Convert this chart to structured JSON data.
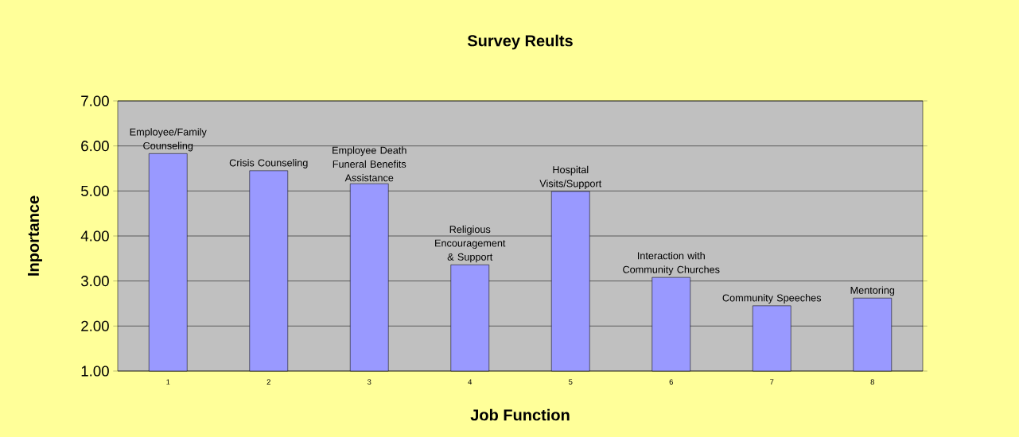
{
  "chart_data": {
    "type": "bar",
    "title": "Survey Reults",
    "xlabel": "Job Function",
    "ylabel": "Inportance",
    "categories": [
      "1",
      "2",
      "3",
      "4",
      "5",
      "6",
      "7",
      "8"
    ],
    "values": [
      5.83,
      5.45,
      5.16,
      3.36,
      4.99,
      3.08,
      2.45,
      2.62
    ],
    "color": "#9999ff",
    "ylim": [
      1,
      7
    ],
    "yticks": [
      {
        "value": 1,
        "label": "1.00"
      },
      {
        "value": 2,
        "label": "2.00"
      },
      {
        "value": 3,
        "label": "3.00"
      },
      {
        "value": 4,
        "label": "4.00"
      },
      {
        "value": 5,
        "label": "5.00"
      },
      {
        "value": 6,
        "label": "6.00"
      },
      {
        "value": 7,
        "label": "7.00"
      }
    ],
    "grid": "y",
    "annotations": [
      {
        "text": "Employee/Family Counseling",
        "x": "1",
        "y": 5.83
      },
      {
        "text": "Crisis Counseling",
        "x": "2",
        "y": 5.45
      },
      {
        "text": "Employee Death Funeral Benefits Assistance",
        "x": "3",
        "y": 5.16
      },
      {
        "text": "Religious Encouragement & Support",
        "x": "4",
        "y": 3.36
      },
      {
        "text": "Hospital Visits/Support",
        "x": "5",
        "y": 4.99
      },
      {
        "text": "Interaction with Community Churches",
        "x": "6",
        "y": 3.08
      },
      {
        "text": "Community Speeches",
        "x": "7",
        "y": 2.45
      },
      {
        "text": "Mentoring",
        "x": "8",
        "y": 2.62
      }
    ]
  }
}
